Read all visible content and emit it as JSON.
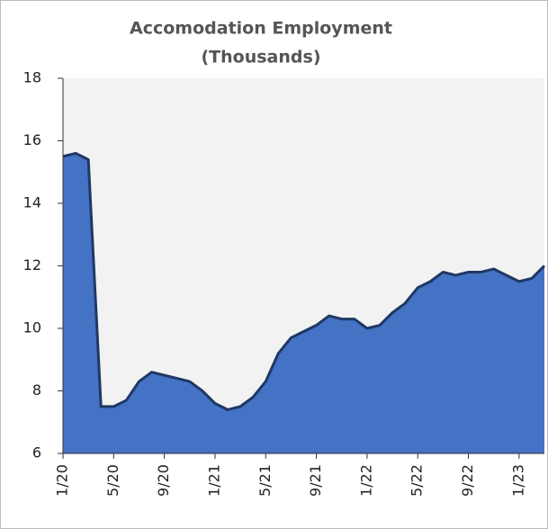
{
  "chart_data": {
    "type": "area",
    "title": [
      "Accomodation Employment",
      "(Thousands)"
    ],
    "categories": [
      "1/20",
      null,
      null,
      null,
      "5/20",
      null,
      null,
      null,
      "9/20",
      null,
      null,
      null,
      "1/21",
      null,
      null,
      null,
      "5/21",
      null,
      null,
      null,
      "9/21",
      null,
      null,
      null,
      "1/22",
      null,
      null,
      null,
      "5/22",
      null,
      null,
      null,
      "9/22",
      null,
      null,
      null,
      "1/23",
      null,
      null
    ],
    "values": [
      15.5,
      15.6,
      15.4,
      7.5,
      7.5,
      7.7,
      8.3,
      8.6,
      8.5,
      8.4,
      8.3,
      8.0,
      7.6,
      7.4,
      7.5,
      7.8,
      8.3,
      9.2,
      9.7,
      9.9,
      10.1,
      10.4,
      10.3,
      10.3,
      10.0,
      10.1,
      10.5,
      10.8,
      11.3,
      11.5,
      11.8,
      11.7,
      11.8,
      11.8,
      11.9,
      11.7,
      11.5,
      11.6,
      12.0
    ],
    "color": "#4472c4",
    "line_color": "#1f3864",
    "plot_background": "#f2f2f2",
    "ylim": [
      6,
      18
    ],
    "yticks": [
      6,
      8,
      10,
      12,
      14,
      16,
      18
    ],
    "grid": false
  }
}
